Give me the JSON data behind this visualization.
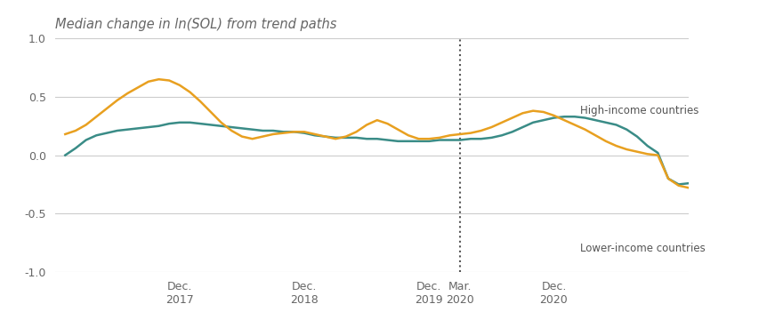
{
  "title": "Median change in ln(SOL) from trend paths",
  "title_color": "#666666",
  "background_color": "#ffffff",
  "high_income_color": "#3a8c87",
  "lower_income_color": "#e8a020",
  "high_income_label": "High-income countries",
  "lower_income_label": "Lower-income countries",
  "ylabel_min": -1.0,
  "ylabel_max": 1.0,
  "yticks": [
    -1.0,
    -0.5,
    0.0,
    0.5,
    1.0
  ],
  "grid_color": "#cccccc",
  "vline_color": "#555555",
  "x_tick_labels": [
    "Dec.\n2017",
    "Dec.\n2018",
    "Dec.\n2019",
    "Mar.\n2020",
    "Dec.\n2020"
  ],
  "high_income_y": [
    0.0,
    0.06,
    0.13,
    0.17,
    0.19,
    0.21,
    0.22,
    0.23,
    0.24,
    0.25,
    0.27,
    0.28,
    0.28,
    0.27,
    0.26,
    0.25,
    0.24,
    0.23,
    0.22,
    0.21,
    0.21,
    0.2,
    0.2,
    0.19,
    0.17,
    0.16,
    0.15,
    0.15,
    0.15,
    0.14,
    0.14,
    0.13,
    0.12,
    0.12,
    0.12,
    0.12,
    0.13,
    0.13,
    0.13,
    0.14,
    0.14,
    0.15,
    0.17,
    0.2,
    0.24,
    0.28,
    0.3,
    0.32,
    0.33,
    0.33,
    0.32,
    0.3,
    0.28,
    0.26,
    0.22,
    0.16,
    0.08,
    0.02,
    -0.2,
    -0.25,
    -0.24,
    -0.22,
    -0.2,
    -0.17,
    -0.12,
    -0.05,
    0.0,
    0.01,
    0.0,
    -0.01,
    -0.02,
    -0.03,
    -0.04,
    -0.05,
    -0.07,
    -0.1,
    -0.13,
    -0.12,
    -0.09,
    -0.05,
    0.03,
    0.14,
    0.22,
    0.27
  ],
  "lower_income_y": [
    0.18,
    0.21,
    0.26,
    0.33,
    0.4,
    0.47,
    0.53,
    0.58,
    0.63,
    0.65,
    0.64,
    0.6,
    0.54,
    0.46,
    0.37,
    0.28,
    0.21,
    0.16,
    0.14,
    0.16,
    0.18,
    0.19,
    0.2,
    0.2,
    0.18,
    0.16,
    0.14,
    0.16,
    0.2,
    0.26,
    0.3,
    0.27,
    0.22,
    0.17,
    0.14,
    0.14,
    0.15,
    0.17,
    0.18,
    0.19,
    0.21,
    0.24,
    0.28,
    0.32,
    0.36,
    0.38,
    0.37,
    0.34,
    0.3,
    0.26,
    0.22,
    0.17,
    0.12,
    0.08,
    0.05,
    0.03,
    0.01,
    0.0,
    -0.2,
    -0.26,
    -0.28,
    -0.28,
    -0.3,
    -0.32,
    -0.35,
    -0.38,
    -0.42,
    -0.43,
    -0.44,
    -0.45,
    -0.46,
    -0.47,
    -0.49,
    -0.52,
    -0.57,
    -0.6,
    -0.62,
    -0.62,
    -0.62,
    -0.64,
    -0.67,
    -0.7,
    -0.72,
    -0.68
  ]
}
